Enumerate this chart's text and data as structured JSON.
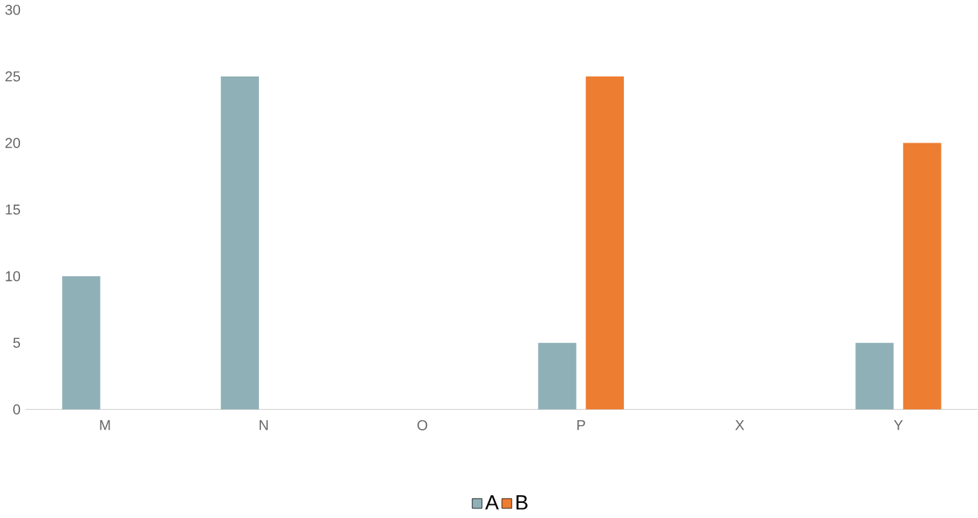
{
  "chart_data": {
    "type": "bar",
    "categories": [
      "M",
      "N",
      "O",
      "P",
      "X",
      "Y"
    ],
    "series": [
      {
        "name": "A",
        "color": "#8fb0b7",
        "values": [
          10,
          25,
          0,
          5,
          0,
          5
        ]
      },
      {
        "name": "B",
        "color": "#ed7d31",
        "values": [
          0,
          0,
          0,
          25,
          0,
          20
        ]
      }
    ],
    "ylim": [
      0,
      30
    ],
    "yticks": [
      0,
      5,
      10,
      15,
      20,
      25,
      30
    ],
    "grid": false,
    "legend": "bottom"
  }
}
